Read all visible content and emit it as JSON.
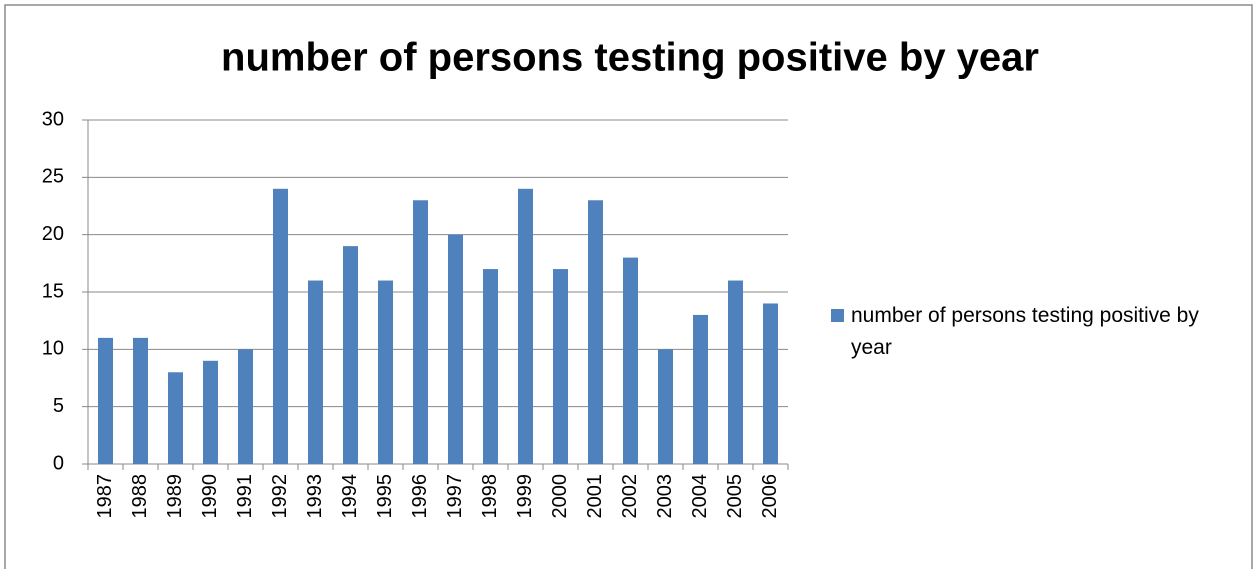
{
  "chart_data": {
    "type": "bar",
    "title": "number of persons testing positive by year",
    "categories": [
      "1987",
      "1988",
      "1989",
      "1990",
      "1991",
      "1992",
      "1993",
      "1994",
      "1995",
      "1996",
      "1997",
      "1998",
      "1999",
      "2000",
      "2001",
      "2002",
      "2003",
      "2004",
      "2005",
      "2006"
    ],
    "series": [
      {
        "name": "number of persons testing positive by year",
        "color": "#4f81bd",
        "values": [
          11,
          11,
          8,
          9,
          10,
          24,
          16,
          19,
          16,
          23,
          20,
          17,
          24,
          17,
          23,
          18,
          10,
          13,
          16,
          14
        ]
      }
    ],
    "ylim": [
      0,
      30
    ],
    "yticks": [
      0,
      5,
      10,
      15,
      20,
      25,
      30
    ],
    "grid": true,
    "legend": "right"
  }
}
